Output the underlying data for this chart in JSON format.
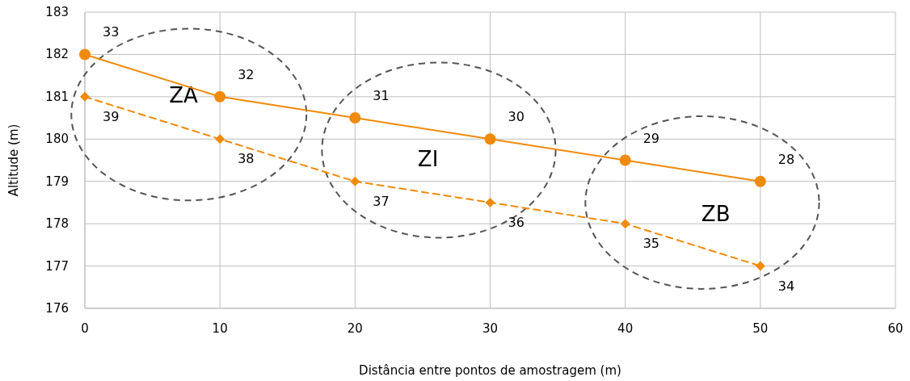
{
  "chart_data": {
    "type": "line",
    "xlabel": "Distância entre pontos de amostragem (m)",
    "ylabel": "Altitude (m)",
    "x": [
      0,
      10,
      20,
      30,
      40,
      50
    ],
    "series": [
      {
        "color": "#f08a0a",
        "values": [
          182,
          181,
          180.5,
          180,
          179.5,
          179
        ],
        "marker": "circle",
        "line_style": "solid"
      },
      {
        "color": "#f08a0a",
        "values": [
          181,
          180,
          179,
          178.5,
          178,
          177
        ],
        "marker": "diamond",
        "line_style": "dashed"
      }
    ],
    "xlim": [
      0,
      60
    ],
    "xticks": [
      0,
      10,
      20,
      30,
      40,
      50,
      60
    ],
    "ylim": [
      176,
      183
    ],
    "yticks": [
      176,
      177,
      178,
      179,
      180,
      181,
      182,
      183
    ],
    "grid": true,
    "annotations": [
      {
        "text": "33",
        "x": 0,
        "y": 182
      },
      {
        "text": "32",
        "x": 10,
        "y": 181
      },
      {
        "text": "31",
        "x": 20,
        "y": 180.5
      },
      {
        "text": "30",
        "x": 30,
        "y": 180
      },
      {
        "text": "29",
        "x": 40,
        "y": 179.5
      },
      {
        "text": "28",
        "x": 50,
        "y": 179
      },
      {
        "text": "39",
        "x": 0,
        "y": 181
      },
      {
        "text": "38",
        "x": 10,
        "y": 180
      },
      {
        "text": "37",
        "x": 20,
        "y": 179
      },
      {
        "text": "36",
        "x": 30,
        "y": 178.5
      },
      {
        "text": "35",
        "x": 40,
        "y": 178
      },
      {
        "text": "34",
        "x": 50,
        "y": 177
      },
      "ZA",
      "ZI",
      "ZB"
    ]
  }
}
